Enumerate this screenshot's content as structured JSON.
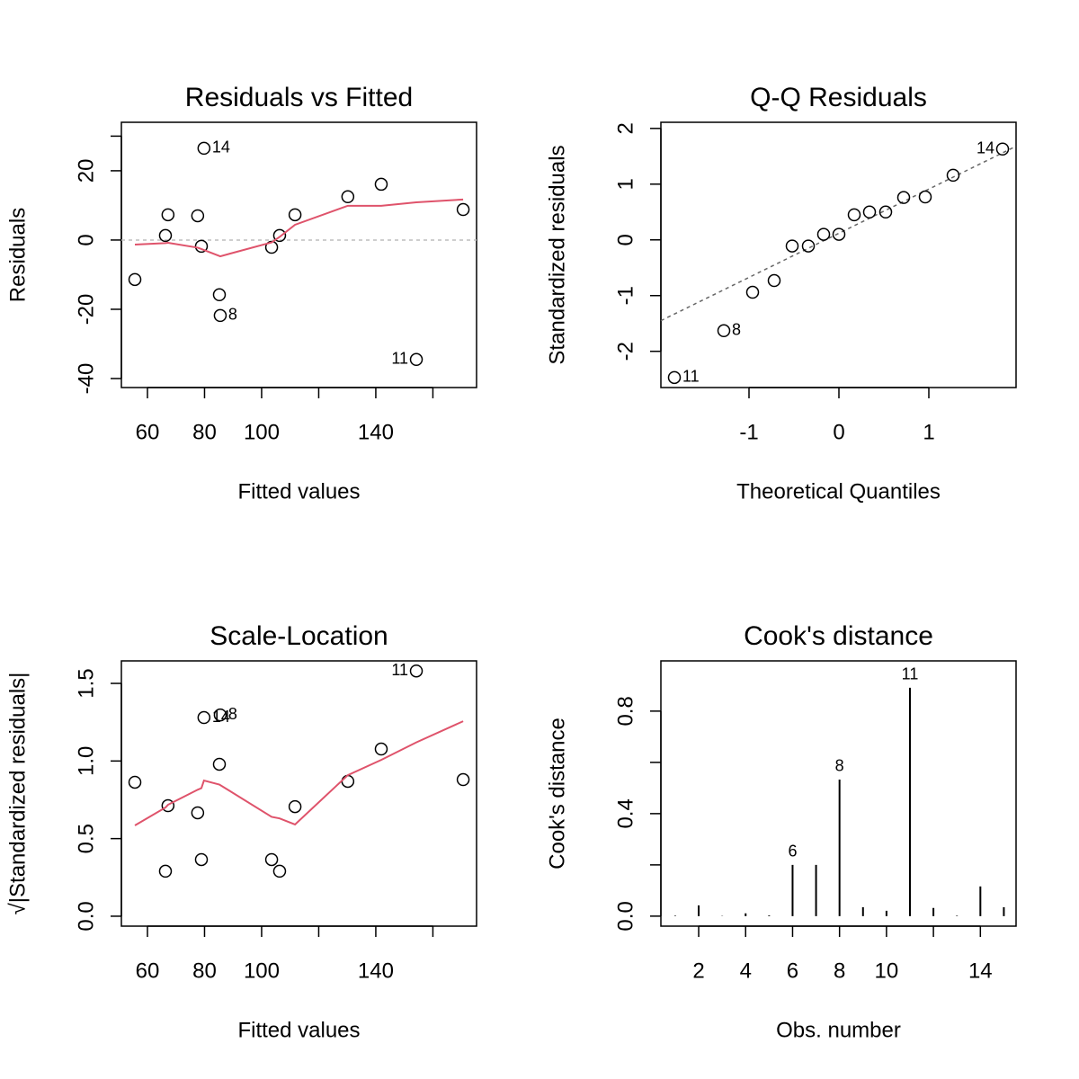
{
  "chart_data": [
    {
      "type": "scatter",
      "title": "Residuals vs Fitted",
      "xlabel": "Fitted values",
      "ylabel": "Residuals",
      "x": [
        55.6,
        66.3,
        67.2,
        77.6,
        78.9,
        79.8,
        85.2,
        85.5,
        103.5,
        106.3,
        111.7,
        130.2,
        141.9,
        154.2,
        170.6
      ],
      "values": [
        -11.4,
        1.3,
        7.3,
        7.0,
        -1.8,
        26.5,
        -15.8,
        -21.8,
        -2.1,
        1.3,
        7.3,
        12.5,
        16.1,
        -34.5,
        8.8
      ],
      "point_labels": [
        null,
        null,
        null,
        null,
        null,
        "14",
        null,
        "8",
        null,
        null,
        null,
        null,
        null,
        "11",
        null
      ],
      "color": "#000000",
      "smooth_values": [
        -1.3,
        -0.9,
        -0.8,
        -2.2,
        -2.6,
        -2.9,
        -4.6,
        -4.7,
        -0.7,
        0.9,
        4.4,
        9.9,
        9.9,
        10.9,
        11.7
      ],
      "smooth_color": "#DF536B",
      "hline": 0,
      "hline_color": "#BEBEBE",
      "xlim": [
        50.87,
        175.3
      ],
      "xticks": [
        60,
        80,
        100,
        140
      ],
      "xminor": [
        120,
        160
      ],
      "ylim": [
        -42.6,
        34.0
      ],
      "yticks": [
        -40,
        -20,
        0,
        20
      ],
      "yminor": [
        30
      ]
    },
    {
      "type": "scatter",
      "title": "Q-Q Residuals",
      "xlabel": "Theoretical Quantiles",
      "ylabel": "Standardized residuals",
      "x": [
        -1.83,
        -1.28,
        -0.96,
        -0.72,
        -0.52,
        -0.34,
        -0.17,
        0,
        0.17,
        0.34,
        0.52,
        0.72,
        0.96,
        1.27,
        1.82
      ],
      "values": [
        -2.47,
        -1.63,
        -0.94,
        -0.73,
        -0.11,
        -0.11,
        0.1,
        0.1,
        0.45,
        0.5,
        0.5,
        0.76,
        0.77,
        1.16,
        1.63
      ],
      "point_labels": [
        "11",
        "8",
        null,
        null,
        null,
        null,
        null,
        null,
        null,
        null,
        null,
        null,
        null,
        null,
        "14"
      ],
      "color": "#000000",
      "refline": {
        "x": [
          -1.98,
          1.97
        ],
        "values": [
          -1.45,
          1.68
        ]
      },
      "refline_color": "#666666",
      "xlim": [
        -1.98,
        1.97
      ],
      "xticks": [
        -1,
        0,
        1
      ],
      "ylim": [
        -2.65,
        2.11
      ],
      "yticks": [
        -2,
        -1,
        0,
        1,
        2
      ]
    },
    {
      "type": "scatter",
      "title": "Scale-Location",
      "xlabel": "Fitted values",
      "ylabel": "√|Standardized residuals|",
      "x": [
        55.6,
        66.3,
        67.2,
        77.6,
        78.9,
        79.8,
        85.2,
        85.5,
        103.5,
        106.3,
        111.7,
        130.2,
        141.9,
        154.2,
        170.6
      ],
      "values": [
        0.863,
        0.29,
        0.712,
        0.666,
        0.365,
        1.28,
        0.979,
        1.297,
        0.365,
        0.29,
        0.706,
        0.869,
        1.077,
        1.58,
        0.88
      ],
      "point_labels": [
        null,
        null,
        null,
        null,
        null,
        "14",
        null,
        "8",
        null,
        null,
        null,
        null,
        null,
        "11",
        null
      ],
      "color": "#000000",
      "smooth_values": [
        0.585,
        0.7,
        0.718,
        0.815,
        0.825,
        0.874,
        0.848,
        0.845,
        0.64,
        0.63,
        0.591,
        0.909,
        1.007,
        1.12,
        1.256
      ],
      "smooth_color": "#DF536B",
      "xlim": [
        50.87,
        175.3
      ],
      "xticks": [
        60,
        80,
        100,
        140
      ],
      "xminor": [
        120,
        160
      ],
      "ylim": [
        -0.064,
        1.645
      ],
      "yticks": [
        {
          "value": 0,
          "label": "0.0"
        },
        0.5,
        {
          "value": 1,
          "label": "1.0"
        },
        1.5
      ]
    },
    {
      "type": "bar",
      "title": "Cook's distance",
      "xlabel": "Obs. number",
      "ylabel": "Cook's distance",
      "x": [
        1,
        2,
        3,
        4,
        5,
        6,
        7,
        8,
        9,
        10,
        11,
        12,
        13,
        14,
        15
      ],
      "values": [
        0.002,
        0.042,
        0.001,
        0.011,
        0.003,
        0.2,
        0.2,
        0.533,
        0.035,
        0.021,
        0.891,
        0.032,
        0.002,
        0.116,
        0.035
      ],
      "bar_labels": [
        null,
        null,
        null,
        null,
        null,
        "6",
        null,
        "8",
        null,
        null,
        "11",
        null,
        null,
        null,
        null
      ],
      "color": "#000000",
      "xlim": [
        0.39,
        15.52
      ],
      "xticks": [
        2,
        4,
        6,
        8,
        10,
        14
      ],
      "xminor": [
        12
      ],
      "ylim": [
        -0.039,
        0.996
      ],
      "yticks": [
        {
          "value": 0,
          "label": "0.0"
        },
        0.4,
        0.8
      ],
      "yminor": [
        0.2,
        0.6
      ]
    }
  ]
}
